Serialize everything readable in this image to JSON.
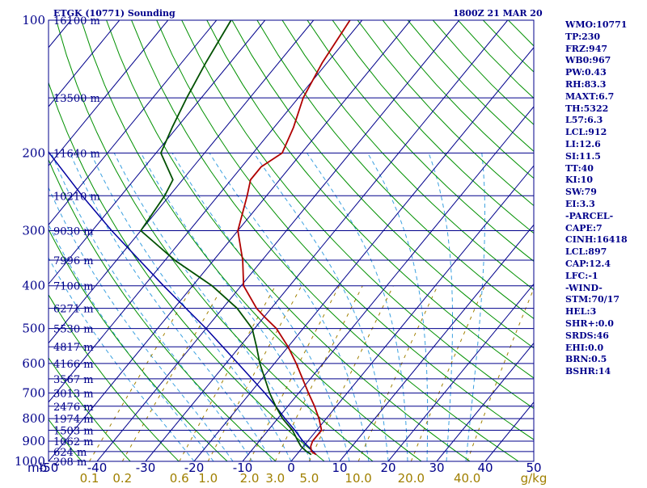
{
  "header": {
    "title": "ETGK (10771) Sounding",
    "valid_time": "1800Z 21 MAR 20"
  },
  "stats": [
    "WMO:10771",
    "TP:230",
    "FRZ:947",
    "WB0:967",
    "PW:0.43",
    "RH:83.3",
    "MAXT:6.7",
    "TH:5322",
    "L57:6.3",
    "LCL:912",
    "LI:12.6",
    "SI:11.5",
    "TT:40",
    "KI:10",
    "SW:79",
    "EI:3.3",
    "-PARCEL-",
    "CAPE:7",
    "CINH:16418",
    "LCL:897",
    "CAP:12.4",
    "LFC:-1",
    "-WIND-",
    "STM:70/17",
    "HEL:3",
    "SHR+:0.0",
    "SRDS:46",
    "EHI:0.0",
    "BRN:0.5",
    "BSHR:14"
  ],
  "chart_data": {
    "type": "line",
    "title": "ETGK (10771) Sounding",
    "pressure_unit": "mb",
    "mixing_ratio_unit": "g/kg",
    "p_axis": {
      "range": [
        1000,
        100
      ],
      "scale": "log"
    },
    "t_axis": {
      "range": [
        -50,
        50
      ],
      "skew": "skew-T"
    },
    "pressure_labels": [
      "100",
      "200",
      "300",
      "400",
      "500",
      "600",
      "700",
      "800",
      "900",
      "1000"
    ],
    "temperature_ticks": [
      "-50",
      "-40",
      "-30",
      "-20",
      "-10",
      "0",
      "10",
      "20",
      "30",
      "40",
      "50"
    ],
    "mixing_ratio_labels": [
      "0.1",
      "0.2",
      "0.6",
      "1.0",
      "2.0",
      "3.0",
      "5.0",
      "10.0",
      "20.0",
      "40.0"
    ],
    "height_labels": [
      {
        "p": 100,
        "label": "16100 m"
      },
      {
        "p": 150,
        "label": "13500 m"
      },
      {
        "p": 200,
        "label": "11640 m"
      },
      {
        "p": 250,
        "label": "10210 m"
      },
      {
        "p": 300,
        "label": "9030 m"
      },
      {
        "p": 350,
        "label": "7996 m"
      },
      {
        "p": 400,
        "label": "7100 m"
      },
      {
        "p": 450,
        "label": "6271 m"
      },
      {
        "p": 500,
        "label": "5530 m"
      },
      {
        "p": 550,
        "label": "4817 m"
      },
      {
        "p": 600,
        "label": "4166 m"
      },
      {
        "p": 650,
        "label": "3567 m"
      },
      {
        "p": 700,
        "label": "3013 m"
      },
      {
        "p": 750,
        "label": "2476 m"
      },
      {
        "p": 800,
        "label": "1974 m"
      },
      {
        "p": 850,
        "label": "1503 m"
      },
      {
        "p": 900,
        "label": "1062 m"
      },
      {
        "p": 950,
        "label": "624 m"
      },
      {
        "p": 1000,
        "label": "208 m"
      }
    ],
    "temperature_profile": {
      "name": "Temperature",
      "color": "#b00000",
      "points": [
        {
          "p": 965,
          "t": 4.0
        },
        {
          "p": 950,
          "t": 2.5
        },
        {
          "p": 925,
          "t": 1.5
        },
        {
          "p": 900,
          "t": 1.0
        },
        {
          "p": 850,
          "t": 1.0
        },
        {
          "p": 800,
          "t": -1.5
        },
        {
          "p": 750,
          "t": -4.5
        },
        {
          "p": 700,
          "t": -8.0
        },
        {
          "p": 600,
          "t": -15.5
        },
        {
          "p": 550,
          "t": -20.0
        },
        {
          "p": 500,
          "t": -25.5
        },
        {
          "p": 470,
          "t": -30.0
        },
        {
          "p": 450,
          "t": -33.0
        },
        {
          "p": 400,
          "t": -39.5
        },
        {
          "p": 350,
          "t": -44.0
        },
        {
          "p": 300,
          "t": -50.0
        },
        {
          "p": 250,
          "t": -54.0
        },
        {
          "p": 230,
          "t": -56.0
        },
        {
          "p": 215,
          "t": -56.0
        },
        {
          "p": 200,
          "t": -54.0
        },
        {
          "p": 175,
          "t": -56.0
        },
        {
          "p": 150,
          "t": -59.0
        },
        {
          "p": 125,
          "t": -61.0
        },
        {
          "p": 100,
          "t": -62.5
        }
      ]
    },
    "dewpoint_profile": {
      "name": "Dewpoint",
      "color": "#005000",
      "points": [
        {
          "p": 965,
          "t": 3.0
        },
        {
          "p": 950,
          "t": 1.5
        },
        {
          "p": 925,
          "t": -0.5
        },
        {
          "p": 900,
          "t": -2.0
        },
        {
          "p": 850,
          "t": -5.0
        },
        {
          "p": 800,
          "t": -9.0
        },
        {
          "p": 750,
          "t": -12.5
        },
        {
          "p": 700,
          "t": -16.0
        },
        {
          "p": 600,
          "t": -23.0
        },
        {
          "p": 550,
          "t": -26.5
        },
        {
          "p": 500,
          "t": -30.5
        },
        {
          "p": 450,
          "t": -37.0
        },
        {
          "p": 400,
          "t": -46.0
        },
        {
          "p": 350,
          "t": -58.0
        },
        {
          "p": 300,
          "t": -70.0
        },
        {
          "p": 250,
          "t": -71.0
        },
        {
          "p": 230,
          "t": -72.0
        },
        {
          "p": 200,
          "t": -79.0
        },
        {
          "p": 175,
          "t": -81.0
        },
        {
          "p": 150,
          "t": -83.0
        },
        {
          "p": 125,
          "t": -85.0
        },
        {
          "p": 100,
          "t": -87.0
        }
      ]
    },
    "parcel_profile": {
      "name": "Parcel",
      "color": "#0000a0",
      "points": [
        {
          "p": 965,
          "t": 4.0
        },
        {
          "p": 900,
          "t": -1.0
        },
        {
          "p": 850,
          "t": -4.5
        },
        {
          "p": 800,
          "t": -8.5
        },
        {
          "p": 750,
          "t": -12.5
        },
        {
          "p": 700,
          "t": -17.0
        },
        {
          "p": 600,
          "t": -27.5
        },
        {
          "p": 500,
          "t": -40.0
        },
        {
          "p": 400,
          "t": -56.0
        },
        {
          "p": 300,
          "t": -76.0
        },
        {
          "p": 250,
          "t": -88.0
        },
        {
          "p": 200,
          "t": -102.0
        },
        {
          "p": 150,
          "t": -118.0
        },
        {
          "p": 125,
          "t": -127.0
        }
      ]
    },
    "grid": true
  },
  "colors": {
    "isobar": "#00008b",
    "isotherm": "#00008b",
    "dry_adiabat": "#009000",
    "moist_adiabat": "#3aa0e0",
    "mixing_ratio": "#a08000",
    "text": "#00008b"
  }
}
